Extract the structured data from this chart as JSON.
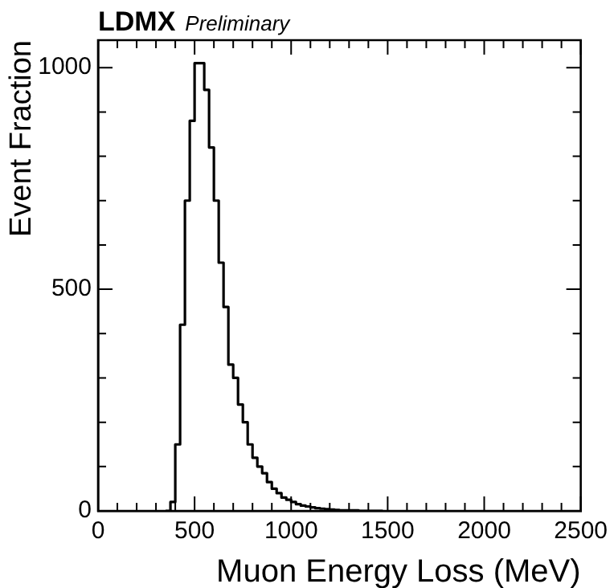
{
  "chart_data": {
    "type": "histogram",
    "title": "LDMX",
    "subtitle": "Preliminary",
    "xlabel": "Muon Energy Loss (MeV)",
    "ylabel": "Event Fraction",
    "color": "#000000",
    "bins": [
      350,
      375,
      400,
      425,
      450,
      475,
      500,
      525,
      550,
      575,
      600,
      625,
      650,
      675,
      700,
      725,
      750,
      775,
      800,
      825,
      850,
      875,
      900,
      925,
      950,
      975,
      1000,
      1025,
      1050,
      1075,
      1100,
      1125,
      1150,
      1175,
      1200,
      1225,
      1250,
      1275,
      1300,
      1325,
      1350,
      1375,
      1400,
      1425,
      1450,
      1475
    ],
    "values": [
      0,
      20,
      150,
      420,
      700,
      880,
      1010,
      1010,
      950,
      820,
      700,
      560,
      460,
      330,
      300,
      240,
      200,
      150,
      120,
      100,
      85,
      65,
      50,
      40,
      30,
      25,
      20,
      15,
      12,
      10,
      8,
      6,
      5,
      4,
      3,
      2,
      1,
      1,
      1,
      1,
      0,
      0,
      0,
      0,
      0
    ],
    "xlim": [
      0,
      2500
    ],
    "ylim": [
      0,
      1062
    ],
    "xticks": [
      0,
      {
        "value": 100,
        "label": null
      },
      {
        "value": 200,
        "label": null
      },
      {
        "value": 300,
        "label": null
      },
      {
        "value": 400,
        "label": null
      },
      500,
      {
        "value": 600,
        "label": null
      },
      {
        "value": 700,
        "label": null
      },
      {
        "value": 800,
        "label": null
      },
      {
        "value": 900,
        "label": null
      },
      1000,
      {
        "value": 1100,
        "label": null
      },
      {
        "value": 1200,
        "label": null
      },
      {
        "value": 1300,
        "label": null
      },
      {
        "value": 1400,
        "label": null
      },
      1500,
      {
        "value": 1600,
        "label": null
      },
      {
        "value": 1700,
        "label": null
      },
      {
        "value": 1800,
        "label": null
      },
      {
        "value": 1900,
        "label": null
      },
      2000,
      {
        "value": 2100,
        "label": null
      },
      {
        "value": 2200,
        "label": null
      },
      {
        "value": 2300,
        "label": null
      },
      {
        "value": 2400,
        "label": null
      },
      2500
    ],
    "yticks": [
      0,
      {
        "value": 100,
        "label": null
      },
      {
        "value": 200,
        "label": null
      },
      {
        "value": 300,
        "label": null
      },
      {
        "value": 400,
        "label": null
      },
      500,
      {
        "value": 600,
        "label": null
      },
      {
        "value": 700,
        "label": null
      },
      {
        "value": 800,
        "label": null
      },
      {
        "value": 900,
        "label": null
      },
      1000
    ],
    "grid": false,
    "legend": false
  }
}
